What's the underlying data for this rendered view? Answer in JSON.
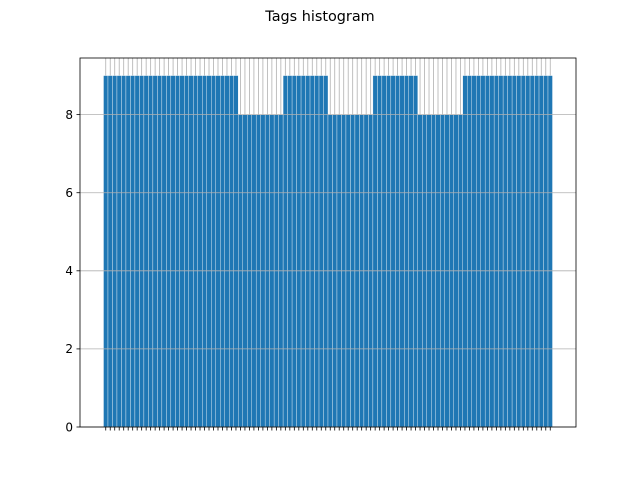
{
  "chart_data": {
    "type": "bar",
    "title": "Tags histogram",
    "xlabel": "",
    "ylabel": "",
    "ylim": [
      0,
      9.45
    ],
    "yticks": [
      0,
      2,
      4,
      6,
      8
    ],
    "grid": true,
    "color": "#1f77b4",
    "num_bins": 100,
    "groups": [
      {
        "count": 30,
        "value": 9
      },
      {
        "count": 10,
        "value": 8
      },
      {
        "count": 10,
        "value": 9
      },
      {
        "count": 10,
        "value": 8
      },
      {
        "count": 10,
        "value": 9
      },
      {
        "count": 10,
        "value": 8
      },
      {
        "count": 20,
        "value": 9
      }
    ]
  }
}
